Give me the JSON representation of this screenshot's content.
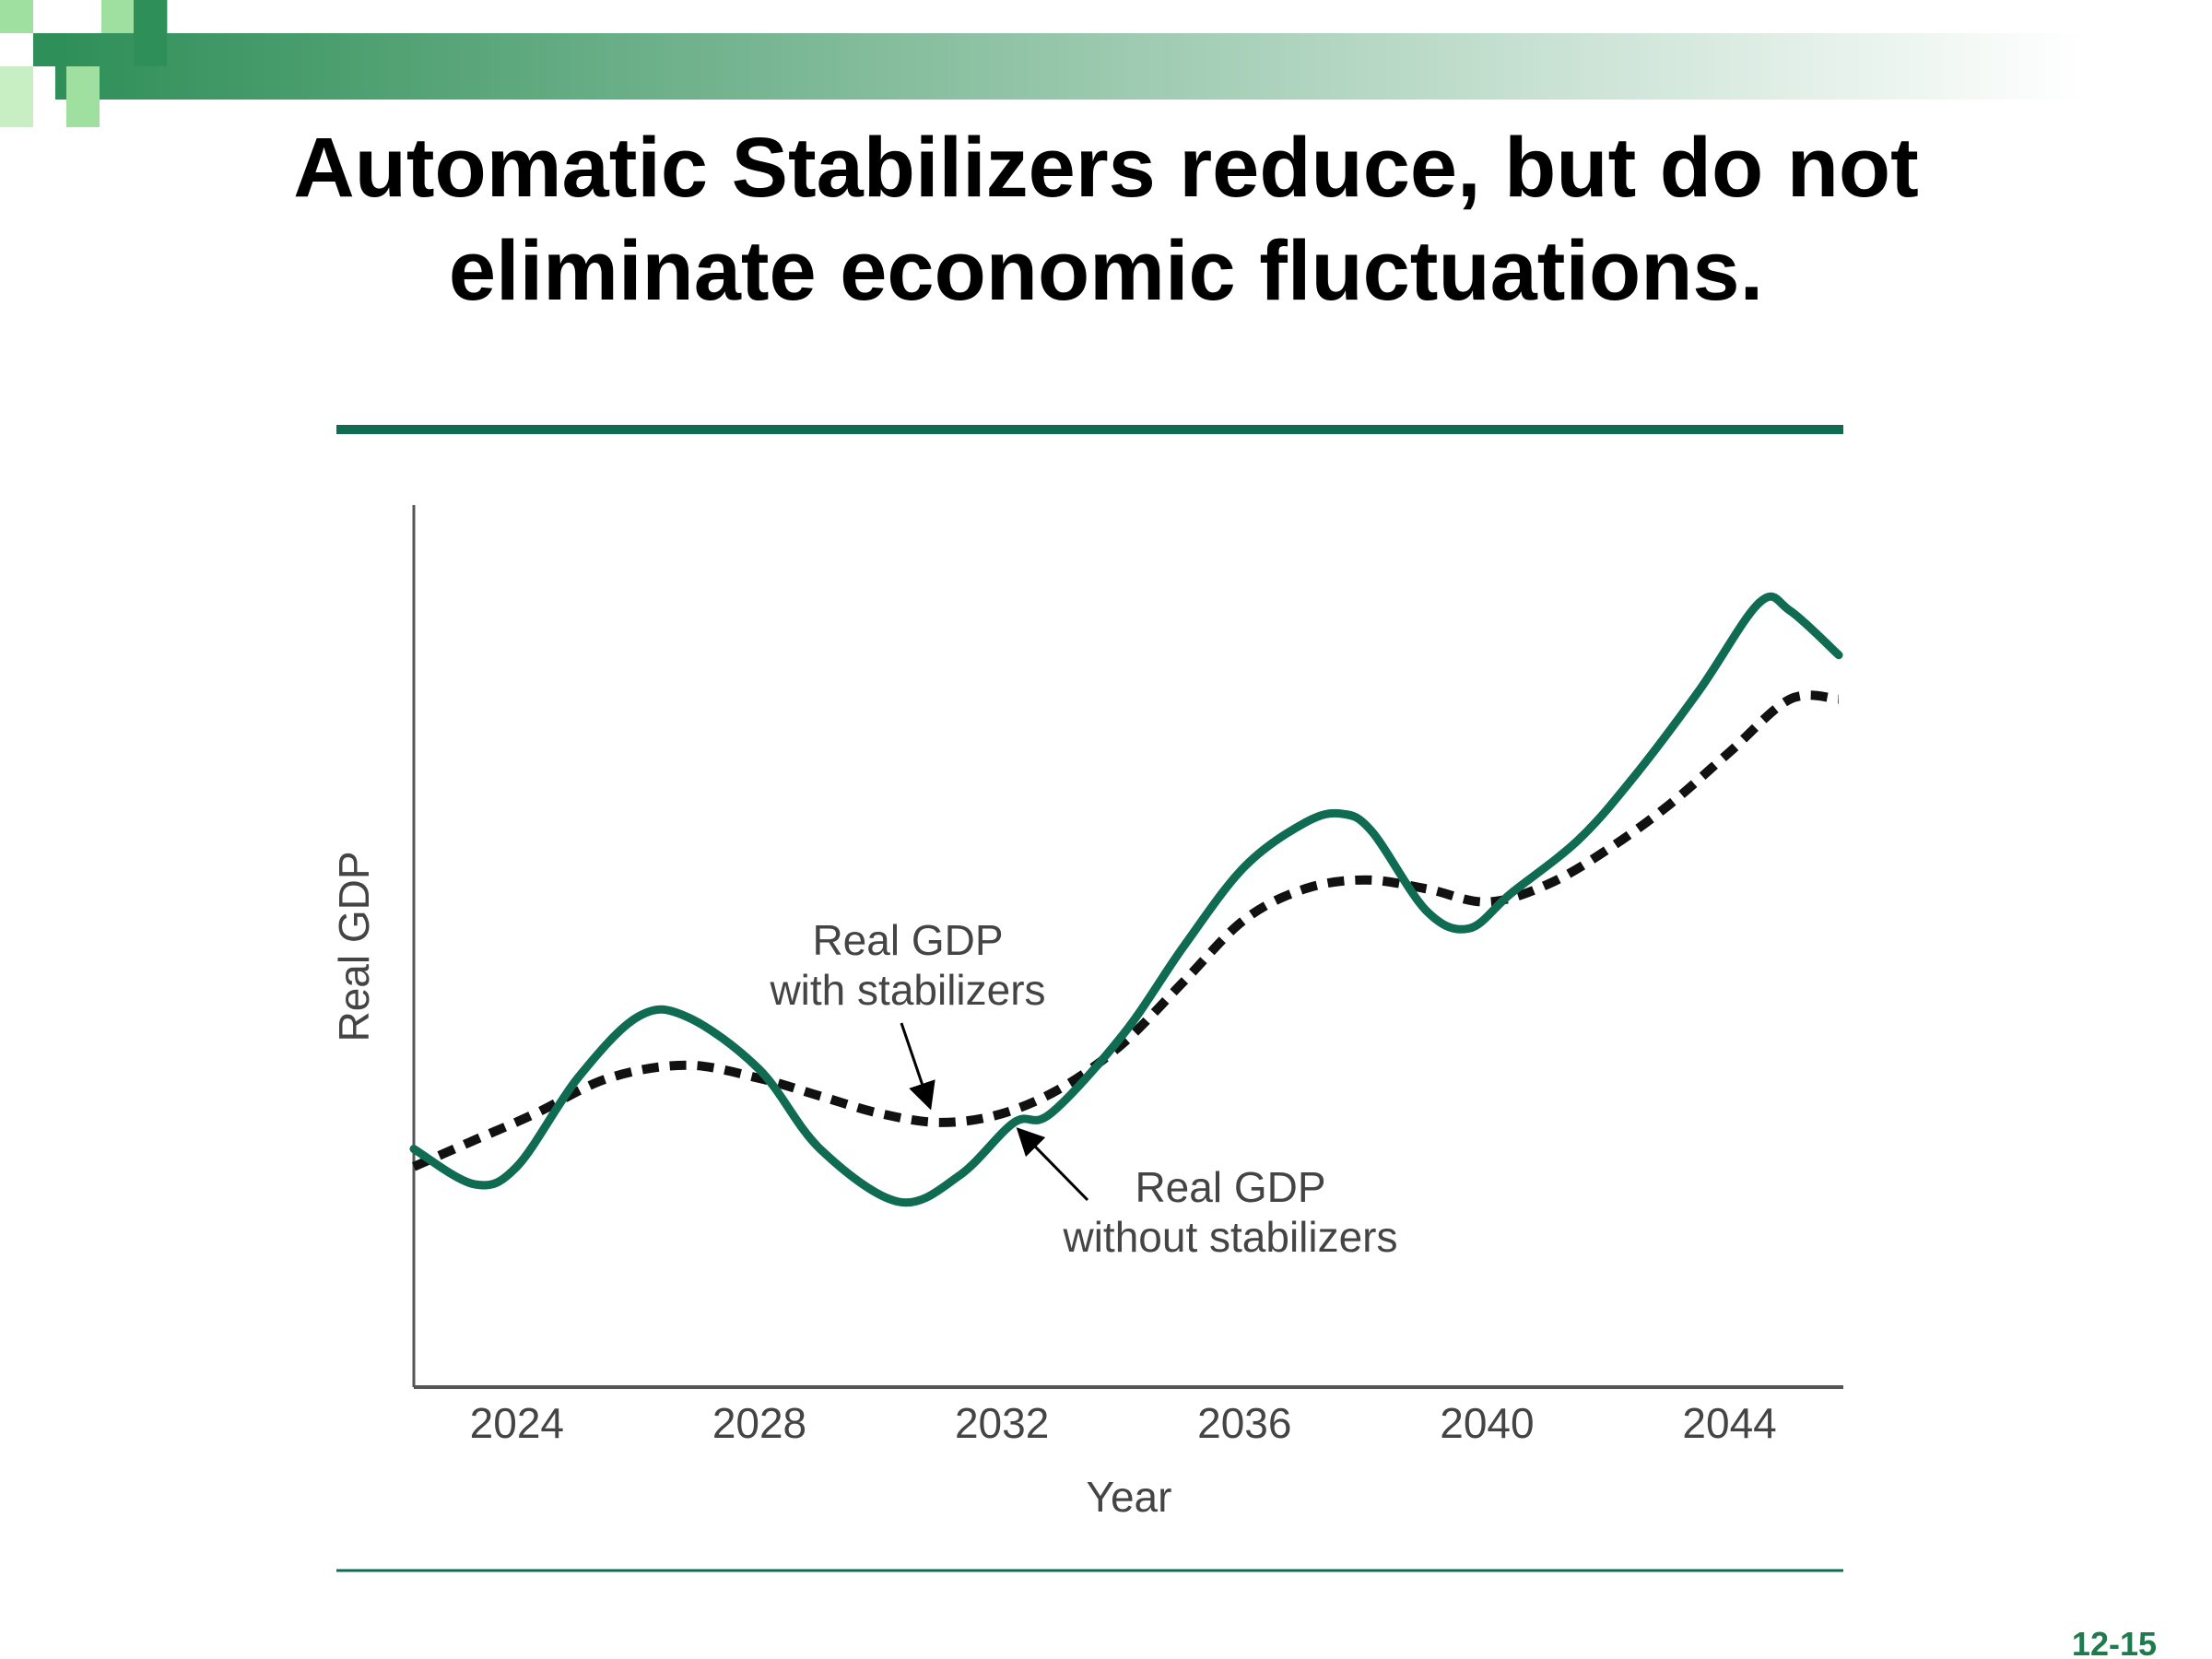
{
  "slide": {
    "title_line1": "Automatic Stabilizers reduce, but do not",
    "title_line2": "eliminate economic fluctuations.",
    "page_number": "12-15"
  },
  "colors": {
    "accent": "#0f6b52",
    "dashed": "#111111",
    "axis": "#555555",
    "header_start": "#2f8f58",
    "header_end": "#ffffff",
    "square_light": "#9fdfa0",
    "square_dark": "#2f8f58",
    "page_number": "#1f7a4d"
  },
  "chart_data": {
    "type": "line",
    "title": "",
    "xlabel": "Year",
    "ylabel": "Real GDP",
    "xlim": [
      2022.3,
      2045.8
    ],
    "ylim": [
      0,
      100
    ],
    "xticks": [
      2024,
      2028,
      2032,
      2036,
      2040,
      2044
    ],
    "xtick_labels": [
      "2024",
      "2028",
      "2032",
      "2036",
      "2040",
      "2044"
    ],
    "series": [
      {
        "name": "Real GDP without stabilizers",
        "style": "solid",
        "x": [
          2022.3,
          2023.3,
          2024.0,
          2025.0,
          2026.0,
          2026.8,
          2028.0,
          2029.0,
          2030.3,
          2031.3,
          2032.2,
          2032.8,
          2034.0,
          2035.0,
          2036.0,
          2037.0,
          2037.6,
          2038.1,
          2039.0,
          2039.7,
          2040.4,
          2041.5,
          2042.4,
          2043.5,
          2044.5,
          2045.0,
          2045.8
        ],
        "y": [
          27,
          23,
          25,
          35,
          42,
          42,
          36,
          27,
          21,
          24,
          30,
          31,
          40,
          50,
          59,
          64,
          65,
          63,
          54,
          52,
          56,
          62,
          69,
          79,
          89,
          88,
          83
        ]
      },
      {
        "name": "Real GDP with stabilizers",
        "style": "dashed",
        "x": [
          2022.3,
          2023.3,
          2024.3,
          2025.5,
          2026.8,
          2028.0,
          2029.0,
          2030.0,
          2031.0,
          2032.0,
          2033.0,
          2034.0,
          2035.0,
          2036.0,
          2037.0,
          2038.0,
          2039.0,
          2040.0,
          2041.0,
          2042.0,
          2043.0,
          2044.0,
          2045.0,
          2045.8
        ],
        "y": [
          25,
          28,
          31,
          35,
          36.5,
          35,
          33,
          31,
          30,
          31,
          34,
          39,
          46,
          53,
          56.5,
          57.5,
          56.5,
          55,
          57,
          61,
          66,
          72,
          78,
          78
        ]
      }
    ],
    "annotations": [
      {
        "text_line1": "Real GDP",
        "text_line2": "with stabilizers",
        "points_to": {
          "x": 2030.8,
          "y": 32
        }
      },
      {
        "text_line1": "Real GDP",
        "text_line2": "without stabilizers",
        "points_to": {
          "x": 2032.3,
          "y": 29
        }
      }
    ],
    "grid": false,
    "legend": "none"
  }
}
